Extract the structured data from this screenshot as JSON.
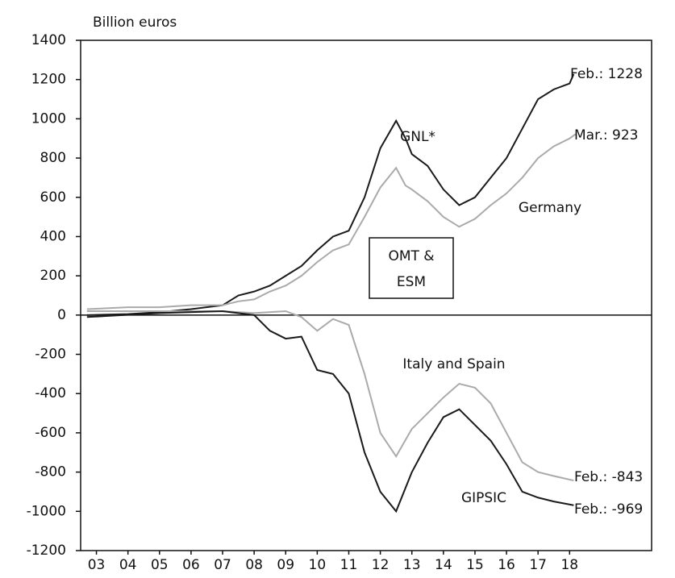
{
  "chart_data": {
    "type": "line",
    "ylabel": "Billion euros",
    "xlim": [
      2.5,
      20.6
    ],
    "xticks": [
      {
        "value": 3,
        "label": "03"
      },
      {
        "value": 4,
        "label": "04"
      },
      {
        "value": 5,
        "label": "05"
      },
      {
        "value": 6,
        "label": "06"
      },
      {
        "value": 7,
        "label": "07"
      },
      {
        "value": 8,
        "label": "08"
      },
      {
        "value": 9,
        "label": "09"
      },
      {
        "value": 10,
        "label": "10"
      },
      {
        "value": 11,
        "label": "11"
      },
      {
        "value": 12,
        "label": "12"
      },
      {
        "value": 13,
        "label": "13"
      },
      {
        "value": 14,
        "label": "14"
      },
      {
        "value": 15,
        "label": "15"
      },
      {
        "value": 16,
        "label": "16"
      },
      {
        "value": 17,
        "label": "17"
      },
      {
        "value": 18,
        "label": "18"
      }
    ],
    "ylim": [
      -1200,
      1400
    ],
    "yticks": [
      -1200,
      -1000,
      -800,
      -600,
      -400,
      -200,
      0,
      200,
      400,
      600,
      800,
      1000,
      1200,
      1400
    ],
    "series": [
      {
        "name": "GNL*",
        "color": "#1a1a1a",
        "x": [
          2.7,
          4,
          5,
          6,
          7,
          7.5,
          8,
          8.5,
          9,
          9.5,
          10,
          10.5,
          11,
          11.5,
          12,
          12.5,
          12.8,
          13,
          13.5,
          14,
          14.5,
          15,
          15.5,
          16,
          16.5,
          17,
          17.5,
          18,
          18.13
        ],
        "values": [
          0,
          5,
          15,
          30,
          50,
          100,
          120,
          150,
          200,
          250,
          330,
          400,
          430,
          600,
          850,
          990,
          900,
          820,
          760,
          640,
          560,
          600,
          700,
          800,
          950,
          1100,
          1150,
          1180,
          1228
        ]
      },
      {
        "name": "Germany",
        "color": "#aaaaaa",
        "x": [
          2.7,
          4,
          5,
          6,
          7,
          7.5,
          8,
          8.5,
          9,
          9.5,
          10,
          10.5,
          11,
          11.5,
          12,
          12.5,
          12.8,
          13,
          13.5,
          14,
          14.5,
          15,
          15.5,
          16,
          16.5,
          17,
          17.5,
          18,
          18.2
        ],
        "values": [
          30,
          40,
          40,
          50,
          50,
          70,
          80,
          120,
          150,
          200,
          270,
          330,
          360,
          500,
          650,
          750,
          660,
          640,
          580,
          500,
          450,
          490,
          560,
          620,
          700,
          800,
          860,
          900,
          923
        ]
      },
      {
        "name": "Italy and Spain",
        "color": "#aaaaaa",
        "x": [
          2.7,
          5,
          7,
          8,
          9,
          9.5,
          10,
          10.5,
          11,
          11.5,
          12,
          12.5,
          13,
          13.5,
          14,
          14.5,
          15,
          15.5,
          16,
          16.5,
          17,
          17.5,
          18.13
        ],
        "values": [
          20,
          20,
          20,
          10,
          20,
          -10,
          -80,
          -20,
          -50,
          -300,
          -600,
          -720,
          -580,
          -500,
          -420,
          -350,
          -370,
          -450,
          -600,
          -750,
          -800,
          -820,
          -843
        ]
      },
      {
        "name": "GIPSIC",
        "color": "#1a1a1a",
        "x": [
          2.7,
          5,
          7,
          8,
          8.5,
          9,
          9.5,
          10,
          10.5,
          11,
          11.5,
          12,
          12.5,
          13,
          13.5,
          14,
          14.5,
          15,
          15.5,
          16,
          16.5,
          17,
          17.5,
          18.13
        ],
        "values": [
          -10,
          10,
          20,
          0,
          -80,
          -120,
          -110,
          -280,
          -300,
          -400,
          -700,
          -900,
          -1000,
          -800,
          -650,
          -520,
          -480,
          -560,
          -640,
          -760,
          -900,
          -930,
          -950,
          -969
        ]
      }
    ],
    "end_labels": [
      "Feb.: 1228",
      "Mar.: 923",
      "Feb.: -843",
      "Feb.: -969"
    ],
    "annotation_box": [
      "OMT &",
      "ESM"
    ]
  }
}
